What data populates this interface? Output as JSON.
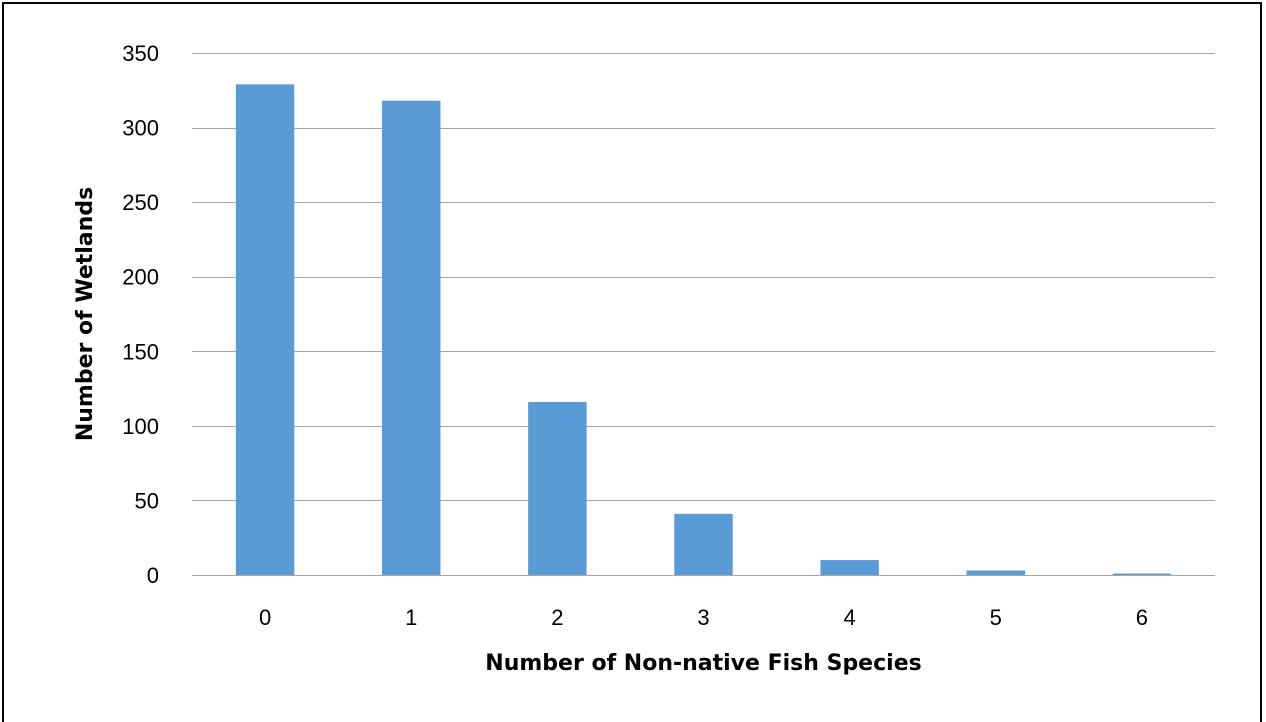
{
  "chart_data": {
    "type": "bar",
    "title": "",
    "xlabel": "Number of Non-native Fish Species",
    "ylabel": "Number of Wetlands",
    "categories": [
      "0",
      "1",
      "2",
      "3",
      "4",
      "5",
      "6"
    ],
    "values": [
      329,
      318,
      116,
      41,
      10,
      3,
      1
    ],
    "ylim": [
      0,
      350
    ],
    "yticks": [
      0,
      50,
      100,
      150,
      200,
      250,
      300,
      350
    ],
    "grid": true,
    "legend": "none",
    "colors": {
      "bar": "#5B9BD5",
      "grid": "#A6A6A6",
      "axis": "#A6A6A6",
      "text": "#000000"
    }
  }
}
